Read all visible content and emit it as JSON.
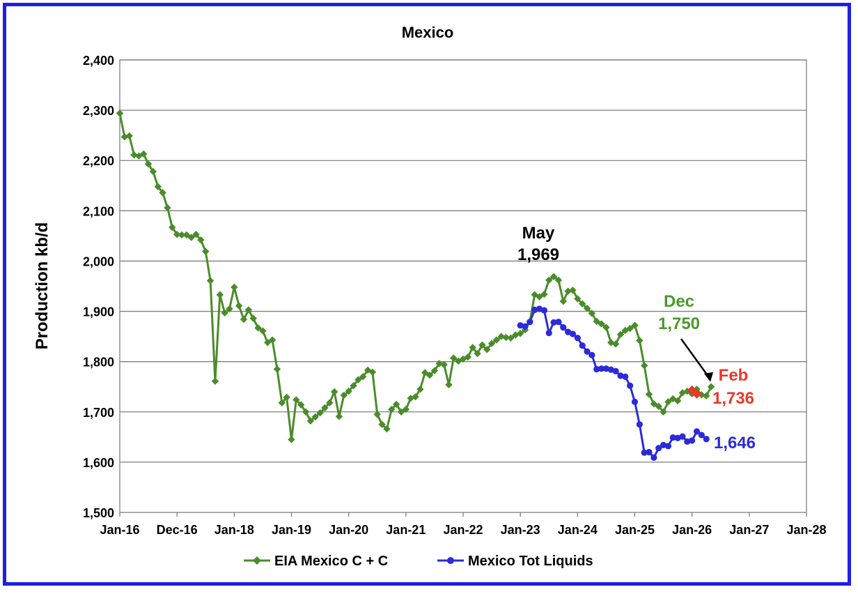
{
  "chart_data": {
    "type": "line",
    "title": "Mexico",
    "ylabel": "Production kb/d",
    "xlabel": "",
    "ylim": [
      1500,
      2400
    ],
    "yticks": [
      "1,500",
      "1,600",
      "1,700",
      "1,800",
      "1,900",
      "2,000",
      "2,100",
      "2,200",
      "2,300",
      "2,400"
    ],
    "xticks": [
      "Jan-16",
      "Dec-16",
      "Jan-18",
      "Jan-19",
      "Jan-20",
      "Jan-21",
      "Jan-22",
      "Jan-23",
      "Jan-24",
      "Jan-25",
      "Jan-26",
      "Jan-27",
      "Jan-28"
    ],
    "grid": "horizontal",
    "legend_position": "bottom",
    "series": [
      {
        "name": "EIA Mexico C + C",
        "color": "#4a8c2a",
        "marker": "diamond",
        "start": "Jan-16",
        "values": [
          2294,
          2247,
          2249,
          2211,
          2209,
          2213,
          2193,
          2178,
          2148,
          2136,
          2106,
          2067,
          2053,
          2052,
          2052,
          2047,
          2053,
          2042,
          2019,
          1961,
          1761,
          1933,
          1897,
          1905,
          1948,
          1911,
          1884,
          1903,
          1886,
          1867,
          1861,
          1838,
          1843,
          1785,
          1718,
          1729,
          1645,
          1724,
          1714,
          1700,
          1682,
          1690,
          1698,
          1708,
          1718,
          1740,
          1691,
          1733,
          1741,
          1752,
          1764,
          1770,
          1783,
          1779,
          1695,
          1675,
          1666,
          1705,
          1715,
          1700,
          1705,
          1727,
          1730,
          1745,
          1778,
          1773,
          1782,
          1796,
          1794,
          1754,
          1807,
          1801,
          1805,
          1809,
          1828,
          1816,
          1833,
          1824,
          1836,
          1843,
          1850,
          1848,
          1847,
          1853,
          1856,
          1863,
          1880,
          1933,
          1929,
          1934,
          1962,
          1969,
          1962,
          1920,
          1940,
          1942,
          1925,
          1915,
          1906,
          1896,
          1880,
          1875,
          1868,
          1838,
          1835,
          1854,
          1862,
          1866,
          1872,
          1842,
          1792,
          1735,
          1716,
          1711,
          1700,
          1720,
          1726,
          1722,
          1738,
          1741,
          1736,
          1745,
          1734,
          1732,
          1750
        ]
      },
      {
        "name": "Mexico Tot Liquids",
        "color": "#2b2bd8",
        "marker": "circle",
        "start": "Jan-23",
        "values": [
          1872,
          1870,
          1879,
          1903,
          1905,
          1902,
          1857,
          1878,
          1879,
          1868,
          1859,
          1855,
          1847,
          1832,
          1820,
          1813,
          1785,
          1786,
          1786,
          1784,
          1781,
          1772,
          1770,
          1752,
          1720,
          1675,
          1619,
          1620,
          1609,
          1628,
          1634,
          1632,
          1649,
          1648,
          1651,
          1641,
          1643,
          1661,
          1654,
          1646
        ]
      },
      {
        "name": "",
        "color": "#e8392c",
        "marker": "diamond",
        "start": "Jan-26",
        "values": [
          1743,
          1736
        ]
      }
    ],
    "annotations": [
      {
        "lines": [
          "May",
          "1,969"
        ],
        "color": "#000000"
      },
      {
        "lines": [
          "Dec",
          "1,750"
        ],
        "color": "#4a9a2c"
      },
      {
        "lines": [
          "Feb",
          "1,736"
        ],
        "color": "#e8392c"
      },
      {
        "lines": [
          "1,646"
        ],
        "color": "#2b2bd8"
      }
    ]
  }
}
